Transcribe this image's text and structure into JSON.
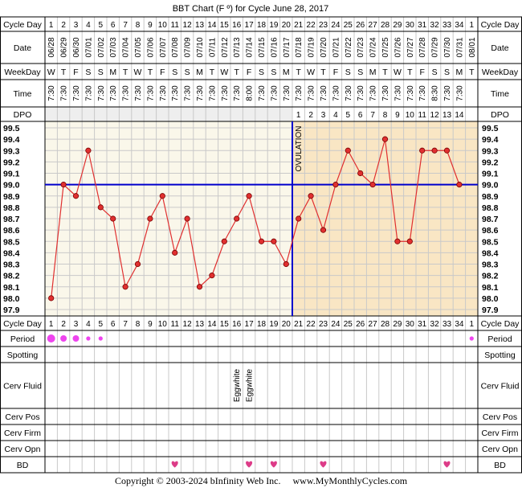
{
  "title": "BBT Chart (F º) for Cycle June 28, 2017",
  "row_labels": {
    "cycle_day": "Cycle Day",
    "date": "Date",
    "weekday": "WeekDay",
    "time": "Time",
    "dpo": "DPO",
    "period": "Period",
    "spotting": "Spotting",
    "cerv_fluid": "Cerv Fluid",
    "cerv_pos": "Cerv Pos",
    "cerv_firm": "Cerv Firm",
    "cerv_opn": "Cerv Opn",
    "bd": "BD"
  },
  "ovulation_label": "OVULATION",
  "copyright": "Copyright © 2003-2024 bInfinity Web Inc.     www.MyMonthlyCycles.com",
  "chart_data": {
    "type": "line",
    "title": "BBT Chart (F º) for Cycle June 28, 2017",
    "ylim": [
      97.9,
      99.5
    ],
    "y_ticks": [
      "99.5",
      "99.4",
      "99.3",
      "99.2",
      "99.1",
      "99.0",
      "98.9",
      "98.8",
      "98.7",
      "98.6",
      "98.5",
      "98.4",
      "98.3",
      "98.2",
      "98.1",
      "98.0",
      "97.9"
    ],
    "cycle_days": [
      "1",
      "2",
      "3",
      "4",
      "5",
      "6",
      "7",
      "8",
      "9",
      "10",
      "11",
      "12",
      "13",
      "14",
      "15",
      "16",
      "17",
      "18",
      "19",
      "20",
      "21",
      "22",
      "23",
      "24",
      "25",
      "26",
      "27",
      "28",
      "29",
      "30",
      "31",
      "32",
      "33",
      "34",
      "1"
    ],
    "dates": [
      "06/28",
      "06/29",
      "06/30",
      "07/01",
      "07/02",
      "07/03",
      "07/04",
      "07/05",
      "07/06",
      "07/07",
      "07/08",
      "07/09",
      "07/10",
      "07/11",
      "07/12",
      "07/13",
      "07/14",
      "07/15",
      "07/16",
      "07/17",
      "07/18",
      "07/19",
      "07/20",
      "07/21",
      "07/22",
      "07/23",
      "07/24",
      "07/25",
      "07/26",
      "07/27",
      "07/28",
      "07/29",
      "07/30",
      "07/31",
      "08/01"
    ],
    "weekdays": [
      "W",
      "T",
      "F",
      "S",
      "S",
      "M",
      "T",
      "W",
      "T",
      "F",
      "S",
      "S",
      "M",
      "T",
      "W",
      "T",
      "F",
      "S",
      "S",
      "M",
      "T",
      "W",
      "T",
      "F",
      "S",
      "S",
      "M",
      "T",
      "W",
      "T",
      "F",
      "S",
      "S",
      "M",
      "T"
    ],
    "times": [
      "7:30",
      "7:30",
      "7:30",
      "7:30",
      "7:30",
      "7:30",
      "7:30",
      "7:30",
      "7:30",
      "7:30",
      "7:30",
      "7:30",
      "7:30",
      "7:30",
      "7:30",
      "7:30",
      "8:00",
      "7:30",
      "7:30",
      "7:30",
      "7:30",
      "7:30",
      "7:30",
      "7:30",
      "7:30",
      "7:30",
      "7:30",
      "7:30",
      "7:30",
      "7:30",
      "7:30",
      "8:30",
      "7:30",
      "7:30",
      ""
    ],
    "dpo": [
      "",
      "",
      "",
      "",
      "",
      "",
      "",
      "",
      "",
      "",
      "",
      "",
      "",
      "",
      "",
      "",
      "",
      "",
      "",
      "",
      "1",
      "2",
      "3",
      "4",
      "5",
      "6",
      "7",
      "8",
      "9",
      "10",
      "11",
      "12",
      "13",
      "14",
      ""
    ],
    "temps": [
      98.0,
      99.0,
      98.9,
      99.3,
      98.8,
      98.7,
      98.1,
      98.3,
      98.7,
      98.9,
      98.4,
      98.7,
      98.1,
      98.2,
      98.5,
      98.7,
      98.9,
      98.5,
      98.5,
      98.3,
      98.7,
      98.9,
      98.6,
      99.0,
      99.3,
      99.1,
      99.0,
      99.4,
      98.5,
      98.5,
      99.3,
      99.3,
      99.3,
      99.0,
      null
    ],
    "coverline": 99.0,
    "ovulation_after_day_index": 19,
    "period": [
      "heavy",
      "medium",
      "medium",
      "light",
      "light",
      "",
      "",
      "",
      "",
      "",
      "",
      "",
      "",
      "",
      "",
      "",
      "",
      "",
      "",
      "",
      "",
      "",
      "",
      "",
      "",
      "",
      "",
      "",
      "",
      "",
      "",
      "",
      "",
      "",
      "light"
    ],
    "cerv_fluid": [
      "",
      "",
      "",
      "",
      "",
      "",
      "",
      "",
      "",
      "",
      "",
      "",
      "",
      "",
      "",
      "Eggwhite",
      "Eggwhite",
      "",
      "",
      "",
      "",
      "",
      "",
      "",
      "",
      "",
      "",
      "",
      "",
      "",
      "",
      "",
      "",
      "",
      ""
    ],
    "bd_days": [
      11,
      17,
      19,
      23,
      33
    ],
    "colors": {
      "temp_line": "#e03030",
      "coverline": "#0000cc",
      "ovulation_line": "#0000cc",
      "pre_ovulation_bg": "#faf7ea",
      "post_ovulation_bg": "#f9e6c4",
      "period_dot": "#ee44ee",
      "heart": "#dd3c88",
      "grid": "#c9c9c9"
    }
  }
}
